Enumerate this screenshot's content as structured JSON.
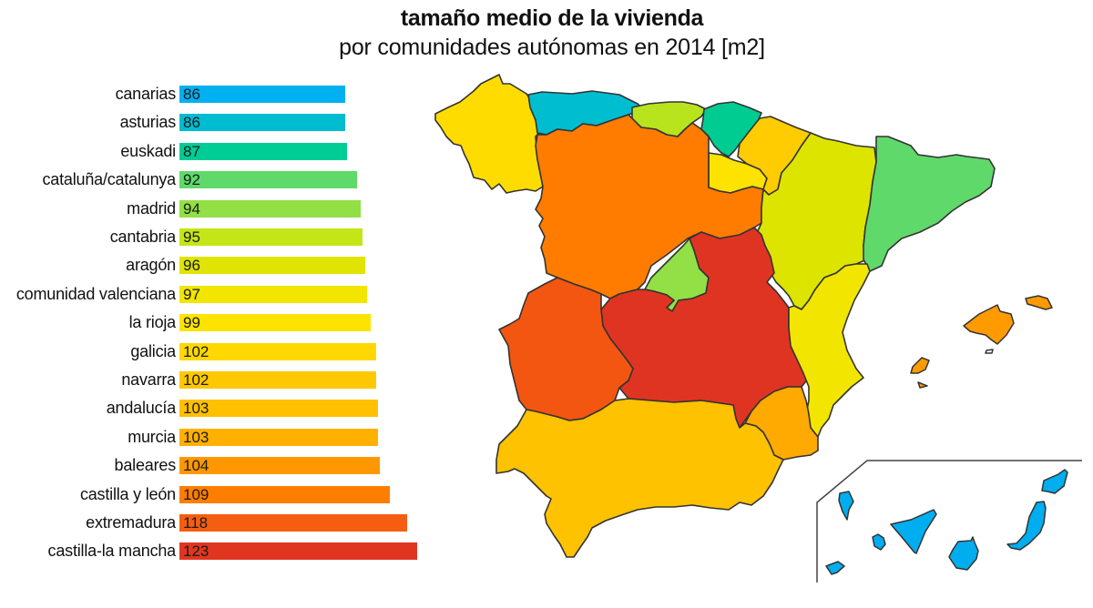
{
  "header": {
    "title": "tamaño medio de la vivienda",
    "subtitle": "por comunidades autónomas en 2014 [m2]"
  },
  "chart_data": {
    "type": "bar",
    "orientation": "horizontal",
    "title": "tamaño medio de la vivienda",
    "subtitle": "por comunidades autónomas en 2014 [m2]",
    "xlabel": "",
    "ylabel": "",
    "unit": "m2",
    "grid": false,
    "legend": null,
    "categories": [
      "canarias",
      "asturias",
      "euskadi",
      "cataluña/catalunya",
      "madrid",
      "cantabria",
      "aragón",
      "comunidad valenciana",
      "la rioja",
      "galicia",
      "navarra",
      "andalucía",
      "murcia",
      "baleares",
      "castilla y león",
      "extremadura",
      "castilla-la mancha"
    ],
    "values": [
      86,
      86,
      87,
      92,
      94,
      95,
      96,
      97,
      99,
      102,
      102,
      103,
      103,
      104,
      109,
      118,
      123
    ],
    "colors": [
      "#00b0f0",
      "#00bcd0",
      "#00cc96",
      "#5fd96a",
      "#92e045",
      "#c4e616",
      "#dfe500",
      "#f2e600",
      "#fde400",
      "#fed800",
      "#fec800",
      "#fec000",
      "#ffb000",
      "#ff9800",
      "#ff7e00",
      "#f55e10",
      "#e03620"
    ],
    "data_labels": true,
    "companion": "choropleth map of Spain colored by the same values"
  },
  "rows": [
    {
      "label": "canarias",
      "value": "86",
      "color": "#00b0f0"
    },
    {
      "label": "asturias",
      "value": "86",
      "color": "#00bcd0"
    },
    {
      "label": "euskadi",
      "value": "87",
      "color": "#00cc96"
    },
    {
      "label": "cataluña/catalunya",
      "value": "92",
      "color": "#5fd96a"
    },
    {
      "label": "madrid",
      "value": "94",
      "color": "#92e045"
    },
    {
      "label": "cantabria",
      "value": "95",
      "color": "#c4e616"
    },
    {
      "label": "aragón",
      "value": "96",
      "color": "#dfe500"
    },
    {
      "label": "comunidad valenciana",
      "value": "97",
      "color": "#f2e600"
    },
    {
      "label": "la rioja",
      "value": "99",
      "color": "#fde400"
    },
    {
      "label": "galicia",
      "value": "102",
      "color": "#fed800"
    },
    {
      "label": "navarra",
      "value": "102",
      "color": "#fec800"
    },
    {
      "label": "andalucía",
      "value": "103",
      "color": "#fec000"
    },
    {
      "label": "murcia",
      "value": "103",
      "color": "#ffb000"
    },
    {
      "label": "baleares",
      "value": "104",
      "color": "#ff9800"
    },
    {
      "label": "castilla y león",
      "value": "109",
      "color": "#ff7e00"
    },
    {
      "label": "extremadura",
      "value": "118",
      "color": "#f55e10"
    },
    {
      "label": "castilla-la mancha",
      "value": "123",
      "color": "#e03620"
    }
  ],
  "map": {
    "region_colors": {
      "galicia": "#fedc00",
      "asturias": "#00bdd0",
      "cantabria": "#b8e41e",
      "euskadi": "#00cc92",
      "navarra": "#fecc00",
      "la_rioja": "#fee200",
      "aragon": "#dce400",
      "cataluna": "#5fd96a",
      "castilla_y_leon": "#ff7c00",
      "madrid": "#92e045",
      "castilla_la_mancha": "#e03422",
      "extremadura": "#f25610",
      "comunidad_valenciana": "#f2e600",
      "murcia": "#ffaa00",
      "andalucia": "#fec200",
      "baleares": "#ff9a00",
      "canarias": "#00aeef"
    }
  }
}
